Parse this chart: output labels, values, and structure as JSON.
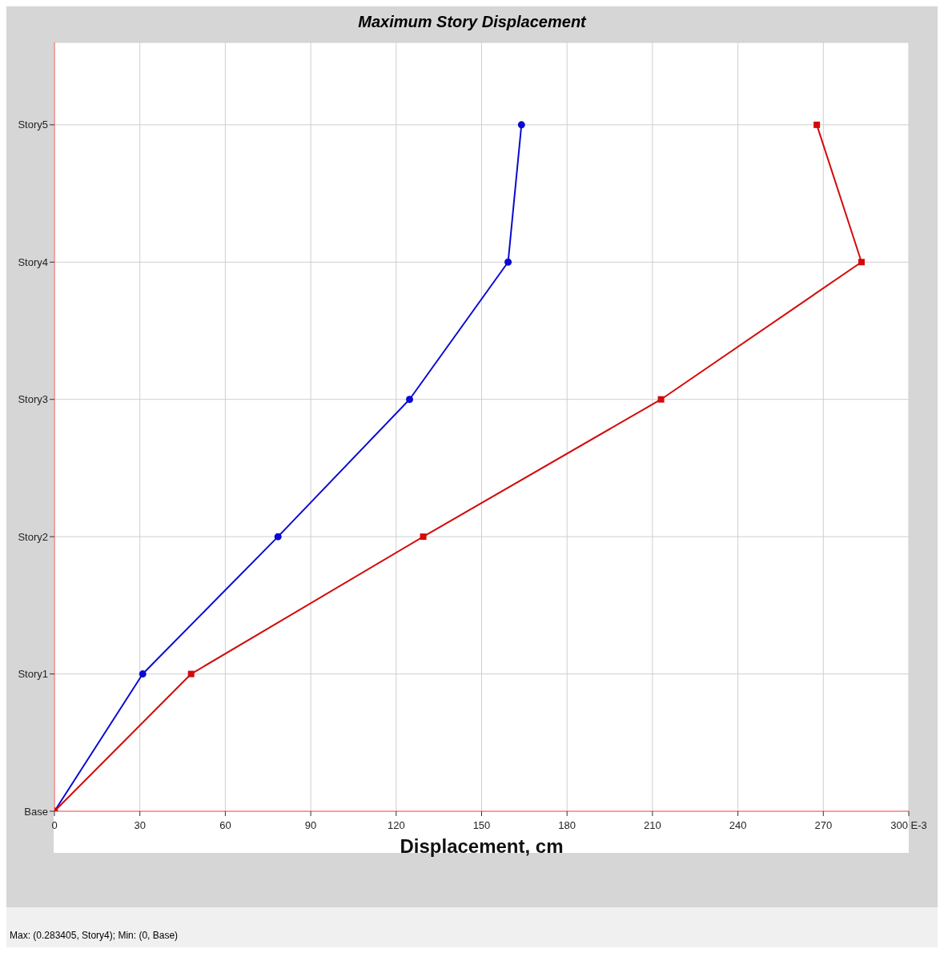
{
  "chart_data": {
    "type": "line",
    "orientation": "horizontal",
    "title": "Maximum Story Displacement",
    "xlabel": "Displacement, cm",
    "categories": [
      "Story5",
      "Story4",
      "Story3",
      "Story2",
      "Story1",
      "Base"
    ],
    "series": [
      {
        "color": "#0a0ad2",
        "marker": "circle",
        "values": [
          164,
          159.3,
          124.7,
          78.5,
          31,
          0
        ]
      },
      {
        "color": "#d40a0a",
        "marker": "square",
        "values": [
          267.7,
          283.4,
          213,
          129.5,
          48,
          0
        ]
      }
    ],
    "xlim": [
      0,
      300
    ],
    "xticks": [
      0,
      30,
      60,
      90,
      120,
      150,
      180,
      210,
      240,
      270,
      {
        "value": 300,
        "label": "300 E-3"
      }
    ],
    "grid": true,
    "annotations": [
      "Max: (0.283405, Story4);  Min: (0, Base)"
    ]
  }
}
